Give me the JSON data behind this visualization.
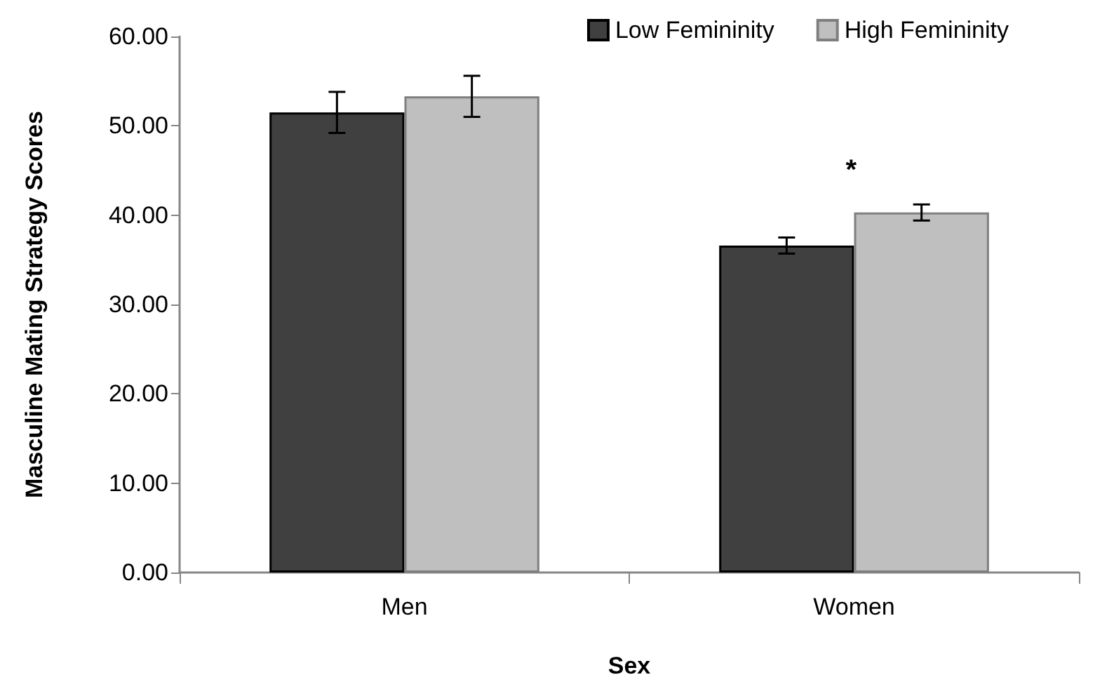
{
  "chart_data": {
    "type": "bar",
    "xlabel": "Sex",
    "ylabel": "Masculine Mating Strategy Scores",
    "categories": [
      "Men",
      "Women"
    ],
    "series": [
      {
        "name": "Low Femininity",
        "color": "#404040",
        "values": [
          51.5,
          36.6
        ],
        "errors": [
          2.3,
          0.9
        ]
      },
      {
        "name": "High Femininity",
        "color": "#bfbfbf",
        "values": [
          53.3,
          40.3
        ],
        "errors": [
          2.3,
          0.9
        ]
      }
    ],
    "ylim": [
      0,
      60
    ],
    "yticks": [
      {
        "value": 0,
        "label": "0.00"
      },
      {
        "value": 10,
        "label": "10.00"
      },
      {
        "value": 20,
        "label": "20.00"
      },
      {
        "value": 30,
        "label": "30.00"
      },
      {
        "value": 40,
        "label": "40.00"
      },
      {
        "value": 50,
        "label": "50.00"
      },
      {
        "value": 60,
        "label": "60.00"
      }
    ],
    "annotations": [
      "*"
    ],
    "grid": false,
    "legend": "top right"
  }
}
